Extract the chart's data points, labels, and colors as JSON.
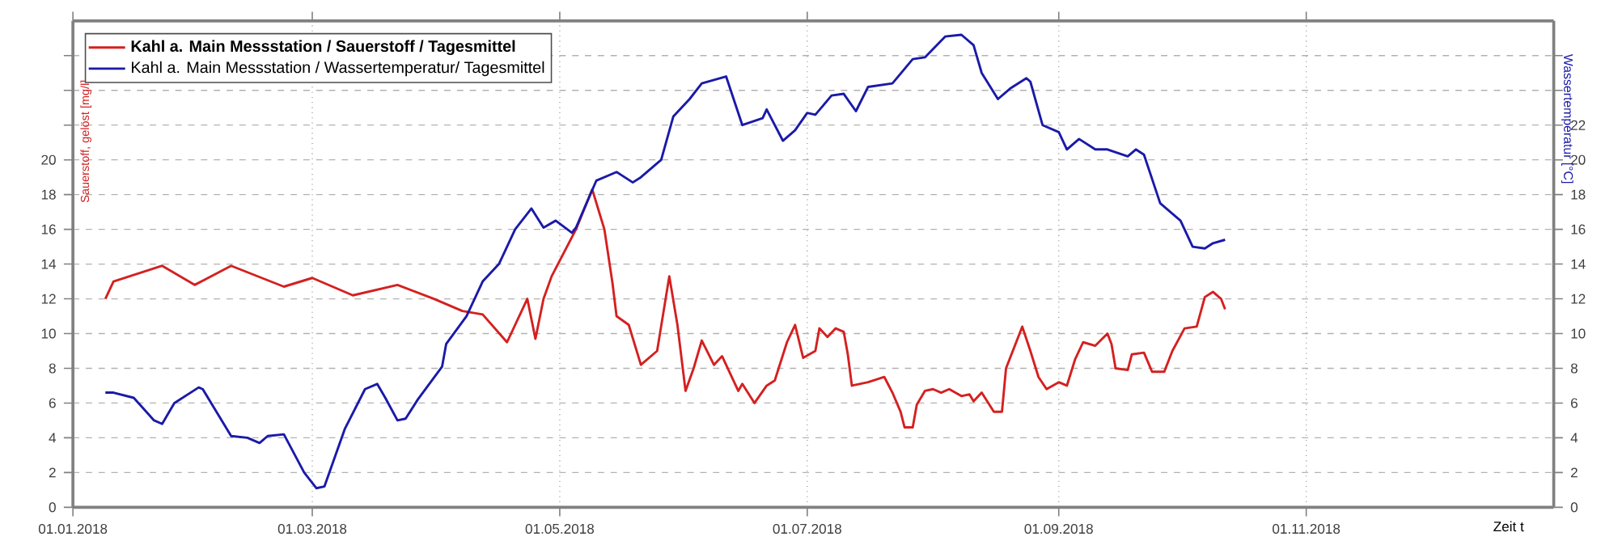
{
  "chart_data": {
    "type": "line",
    "xlabel": "Zeit t",
    "ylabel": "Sauerstoff, gelöst [mg/l]",
    "y2label": "Wassertemperatur [°C]",
    "xlim": [
      "2018-01-01",
      "2019-01-01"
    ],
    "xticks": [
      {
        "value": "2018-01-01",
        "label": "01.01.2018"
      },
      {
        "value": "2018-03-01",
        "label": "01.03.2018"
      },
      {
        "value": "2018-05-01",
        "label": "01.05.2018"
      },
      {
        "value": "2018-07-01",
        "label": "01.07.2018"
      },
      {
        "value": "2018-09-01",
        "label": "01.09.2018"
      },
      {
        "value": "2018-11-01",
        "label": "01.11.2018"
      }
    ],
    "ylim": [
      0,
      28
    ],
    "yticks": [
      0,
      2,
      4,
      6,
      8,
      10,
      12,
      14,
      16,
      18,
      20,
      {
        "value": 22,
        "label": null
      },
      {
        "value": 24,
        "label": null
      },
      {
        "value": 26,
        "label": null
      }
    ],
    "y2lim": [
      0,
      28
    ],
    "y2ticks": [
      0,
      2,
      4,
      6,
      8,
      10,
      12,
      14,
      16,
      18,
      20,
      22,
      {
        "value": 24,
        "label": null
      },
      {
        "value": 26,
        "label": null
      }
    ],
    "grid": true,
    "legend": "top left",
    "series": [
      {
        "name": "Kahl a. Main Messstation / Sauerstoff / Tagesmittel",
        "color": "#d42020",
        "x": [
          "2018-01-09",
          "2018-01-11",
          "2018-01-23",
          "2018-01-31",
          "2018-02-09",
          "2018-02-22",
          "2018-03-01",
          "2018-03-11",
          "2018-03-22",
          "2018-03-31",
          "2018-04-07",
          "2018-04-12",
          "2018-04-18",
          "2018-04-23",
          "2018-04-25",
          "2018-04-27",
          "2018-04-29",
          "2018-05-05",
          "2018-05-09",
          "2018-05-12",
          "2018-05-14",
          "2018-05-15",
          "2018-05-18",
          "2018-05-21",
          "2018-05-25",
          "2018-05-28",
          "2018-05-30",
          "2018-06-01",
          "2018-06-03",
          "2018-06-05",
          "2018-06-08",
          "2018-06-10",
          "2018-06-14",
          "2018-06-15",
          "2018-06-18",
          "2018-06-21",
          "2018-06-23",
          "2018-06-26",
          "2018-06-28",
          "2018-06-30",
          "2018-07-03",
          "2018-07-04",
          "2018-07-06",
          "2018-07-08",
          "2018-07-10",
          "2018-07-11",
          "2018-07-12",
          "2018-07-16",
          "2018-07-20",
          "2018-07-22",
          "2018-07-24",
          "2018-07-25",
          "2018-07-27",
          "2018-07-28",
          "2018-07-30",
          "2018-08-01",
          "2018-08-03",
          "2018-08-05",
          "2018-08-08",
          "2018-08-10",
          "2018-08-11",
          "2018-08-13",
          "2018-08-16",
          "2018-08-18",
          "2018-08-19",
          "2018-08-23",
          "2018-08-25",
          "2018-08-27",
          "2018-08-29",
          "2018-09-01",
          "2018-09-03",
          "2018-09-05",
          "2018-09-07",
          "2018-09-10",
          "2018-09-13",
          "2018-09-14",
          "2018-09-15",
          "2018-09-18",
          "2018-09-19",
          "2018-09-22",
          "2018-09-24",
          "2018-09-27",
          "2018-09-29",
          "2018-10-02",
          "2018-10-05",
          "2018-10-07",
          "2018-10-09",
          "2018-10-11",
          "2018-10-12"
        ],
        "values": [
          12.0,
          13.0,
          13.9,
          12.8,
          13.9,
          12.7,
          13.2,
          12.2,
          12.8,
          12.0,
          11.3,
          11.1,
          9.5,
          12.0,
          9.7,
          12.0,
          13.3,
          16.0,
          18.3,
          16.0,
          12.9,
          11.0,
          10.5,
          8.2,
          9.0,
          13.3,
          10.5,
          6.7,
          8.0,
          9.6,
          8.2,
          8.7,
          6.7,
          7.1,
          6.0,
          7.0,
          7.3,
          9.5,
          10.5,
          8.6,
          9.0,
          10.3,
          9.8,
          10.3,
          10.1,
          8.8,
          7.0,
          7.2,
          7.5,
          6.6,
          5.5,
          4.6,
          4.6,
          5.9,
          6.7,
          6.8,
          6.6,
          6.8,
          6.4,
          6.5,
          6.1,
          6.6,
          5.5,
          5.5,
          8.0,
          10.4,
          9.0,
          7.5,
          6.8,
          7.2,
          7.0,
          8.5,
          9.5,
          9.3,
          10.0,
          9.4,
          8.0,
          7.9,
          8.8,
          8.9,
          7.8,
          7.8,
          9.0,
          10.3,
          10.4,
          12.1,
          12.4,
          12.0,
          11.4
        ]
      },
      {
        "name": "Kahl a. Main Messstation / Wassertemperatur/ Tagesmittel",
        "color": "#1a1aa8",
        "axis": "y2",
        "x": [
          "2018-01-09",
          "2018-01-11",
          "2018-01-16",
          "2018-01-21",
          "2018-01-23",
          "2018-01-26",
          "2018-02-01",
          "2018-02-02",
          "2018-02-09",
          "2018-02-13",
          "2018-02-16",
          "2018-02-18",
          "2018-02-22",
          "2018-02-27",
          "2018-03-02",
          "2018-03-04",
          "2018-03-09",
          "2018-03-14",
          "2018-03-17",
          "2018-03-19",
          "2018-03-22",
          "2018-03-24",
          "2018-03-27",
          "2018-04-02",
          "2018-04-03",
          "2018-04-08",
          "2018-04-12",
          "2018-04-16",
          "2018-04-20",
          "2018-04-24",
          "2018-04-27",
          "2018-04-30",
          "2018-05-04",
          "2018-05-05",
          "2018-05-10",
          "2018-05-15",
          "2018-05-19",
          "2018-05-21",
          "2018-05-26",
          "2018-05-29",
          "2018-06-02",
          "2018-06-05",
          "2018-06-11",
          "2018-06-15",
          "2018-06-20",
          "2018-06-21",
          "2018-06-25",
          "2018-06-28",
          "2018-07-01",
          "2018-07-03",
          "2018-07-07",
          "2018-07-10",
          "2018-07-13",
          "2018-07-16",
          "2018-07-22",
          "2018-07-27",
          "2018-07-30",
          "2018-08-04",
          "2018-08-08",
          "2018-08-11",
          "2018-08-13",
          "2018-08-17",
          "2018-08-20",
          "2018-08-24",
          "2018-08-25",
          "2018-08-28",
          "2018-09-01",
          "2018-09-03",
          "2018-09-06",
          "2018-09-10",
          "2018-09-13",
          "2018-09-18",
          "2018-09-20",
          "2018-09-22",
          "2018-09-26",
          "2018-10-01",
          "2018-10-04",
          "2018-10-07",
          "2018-10-09",
          "2018-10-12"
        ],
        "values": [
          6.6,
          6.6,
          6.3,
          5.0,
          4.8,
          6.0,
          6.9,
          6.8,
          4.1,
          4.0,
          3.7,
          4.1,
          4.2,
          2.0,
          1.1,
          1.2,
          4.5,
          6.8,
          7.1,
          6.3,
          5.0,
          5.1,
          6.2,
          8.1,
          9.4,
          11.0,
          13.0,
          14.0,
          16.0,
          17.2,
          16.1,
          16.5,
          15.8,
          16.1,
          18.8,
          19.3,
          18.7,
          19.0,
          20.0,
          22.5,
          23.5,
          24.4,
          24.8,
          22.0,
          22.4,
          22.9,
          21.1,
          21.7,
          22.7,
          22.6,
          23.7,
          23.8,
          22.8,
          24.2,
          24.4,
          25.8,
          25.9,
          27.1,
          27.2,
          26.6,
          25.0,
          23.5,
          24.1,
          24.7,
          24.5,
          22.0,
          21.6,
          20.6,
          21.2,
          20.6,
          20.6,
          20.2,
          20.6,
          20.3,
          17.5,
          16.5,
          15.0,
          14.9,
          15.2,
          15.4
        ]
      }
    ]
  }
}
